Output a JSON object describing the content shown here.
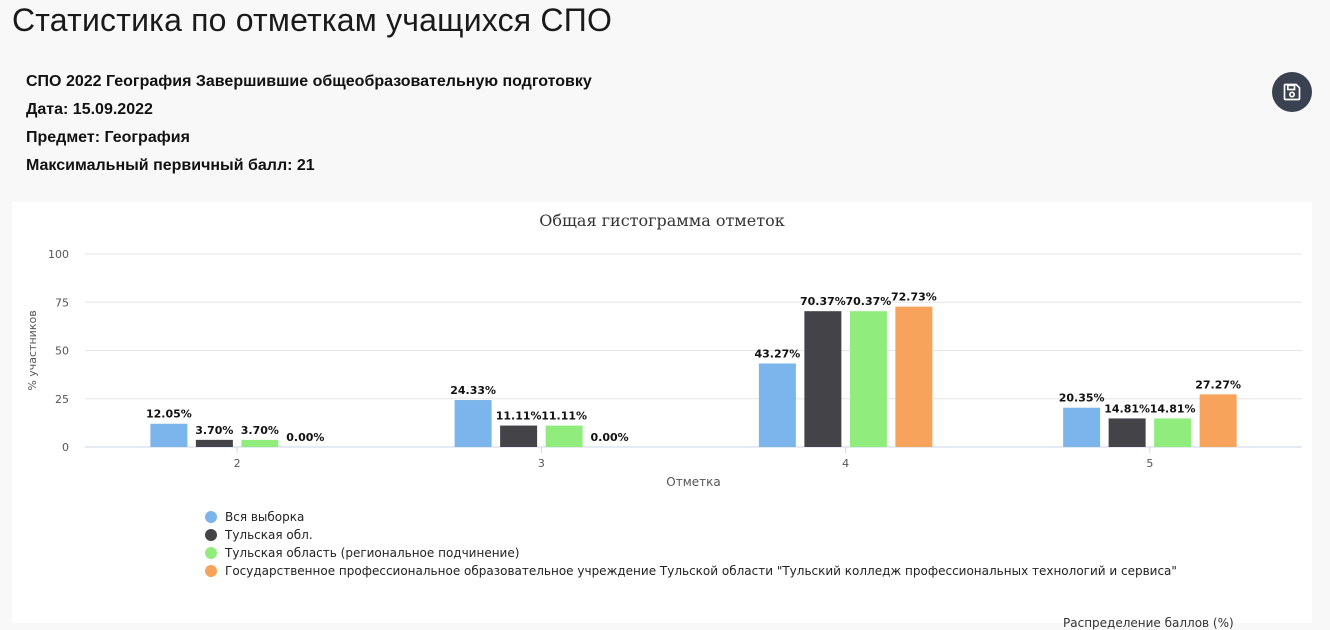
{
  "page": {
    "title": "Статистика по отметкам учащихся СПО"
  },
  "info": {
    "line1": "СПО 2022 География Завершившие общеобразовательную подготовку",
    "line2": "Дата: 15.09.2022",
    "line3": "Предмет: География",
    "line4": "Максимальный первичный балл: 21"
  },
  "save_button": {
    "icon": "save-icon"
  },
  "footer": {
    "text": "Распределение баллов (%)"
  },
  "chart_data": {
    "type": "bar",
    "title": "Общая гистограмма отметок",
    "xlabel": "Отметка",
    "ylabel": "% участников",
    "ylim": [
      0,
      100
    ],
    "yticks": [
      0,
      25,
      50,
      75,
      100
    ],
    "categories": [
      "2",
      "3",
      "4",
      "5"
    ],
    "grid": true,
    "legend_position": "bottom-left",
    "series": [
      {
        "name": "Вся выборка",
        "color": "#7cb5ec",
        "values": [
          12.05,
          24.33,
          43.27,
          20.35
        ],
        "labels": [
          "12.05%",
          "24.33%",
          "43.27%",
          "20.35%"
        ]
      },
      {
        "name": "Тульская обл.",
        "color": "#434348",
        "values": [
          3.7,
          11.11,
          70.37,
          14.81
        ],
        "labels": [
          "3.70%",
          "11.11%",
          "70.37%",
          "14.81%"
        ]
      },
      {
        "name": "Тульская область (региональное подчинение)",
        "color": "#90ed7d",
        "values": [
          3.7,
          11.11,
          70.37,
          14.81
        ],
        "labels": [
          "3.70%",
          "11.11%",
          "70.37%",
          "14.81%"
        ]
      },
      {
        "name": "Государственное профессиональное образовательное учреждение Тульской области \"Тульский колледж профессиональных технологий и сервиса\"",
        "color": "#f7a35c",
        "values": [
          0.0,
          0.0,
          72.73,
          27.27
        ],
        "labels": [
          "0.00%",
          "0.00%",
          "72.73%",
          "27.27%"
        ]
      }
    ]
  }
}
